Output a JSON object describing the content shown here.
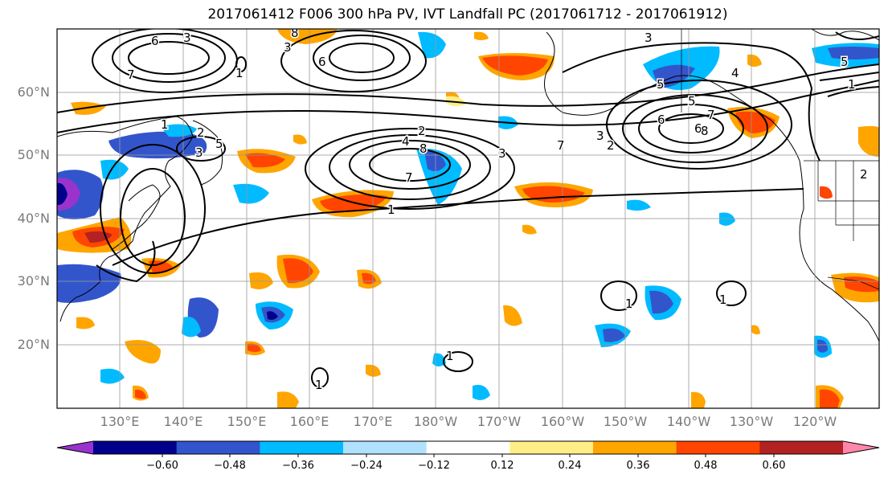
{
  "title": "2017061412 F006 300 hPa PV, IVT Landfall PC (2017061712 - 2017061912)",
  "lat_labels": [
    "60°N",
    "50°N",
    "40°N",
    "30°N",
    "20°N"
  ],
  "lon_labels": [
    "130°E",
    "140°E",
    "150°E",
    "160°E",
    "170°E",
    "180°W",
    "170°W",
    "160°W",
    "150°W",
    "140°W",
    "130°W",
    "120°W"
  ],
  "contour_labels": [
    "6",
    "3",
    "7",
    "3",
    "8",
    "6",
    "1",
    "3",
    "5",
    "5",
    "6",
    "4",
    "1",
    "5",
    "6",
    "7",
    "8",
    "7",
    "3",
    "2",
    "2",
    "5",
    "4",
    "1",
    "8",
    "3",
    "7",
    "3",
    "2",
    "1",
    "1",
    "1",
    "1",
    "1",
    "2"
  ],
  "colorbar": {
    "ticks": [
      "−0.60",
      "−0.48",
      "−0.36",
      "−0.24",
      "−0.12",
      "0.12",
      "0.24",
      "0.36",
      "0.48",
      "0.60"
    ],
    "colors": [
      "#9933cc",
      "#00008b",
      "#3355cc",
      "#00bbff",
      "#b0e2ff",
      "#ffffff",
      "#ffee88",
      "#ffa500",
      "#ff4500",
      "#b22222",
      "#ff88aa"
    ]
  }
}
